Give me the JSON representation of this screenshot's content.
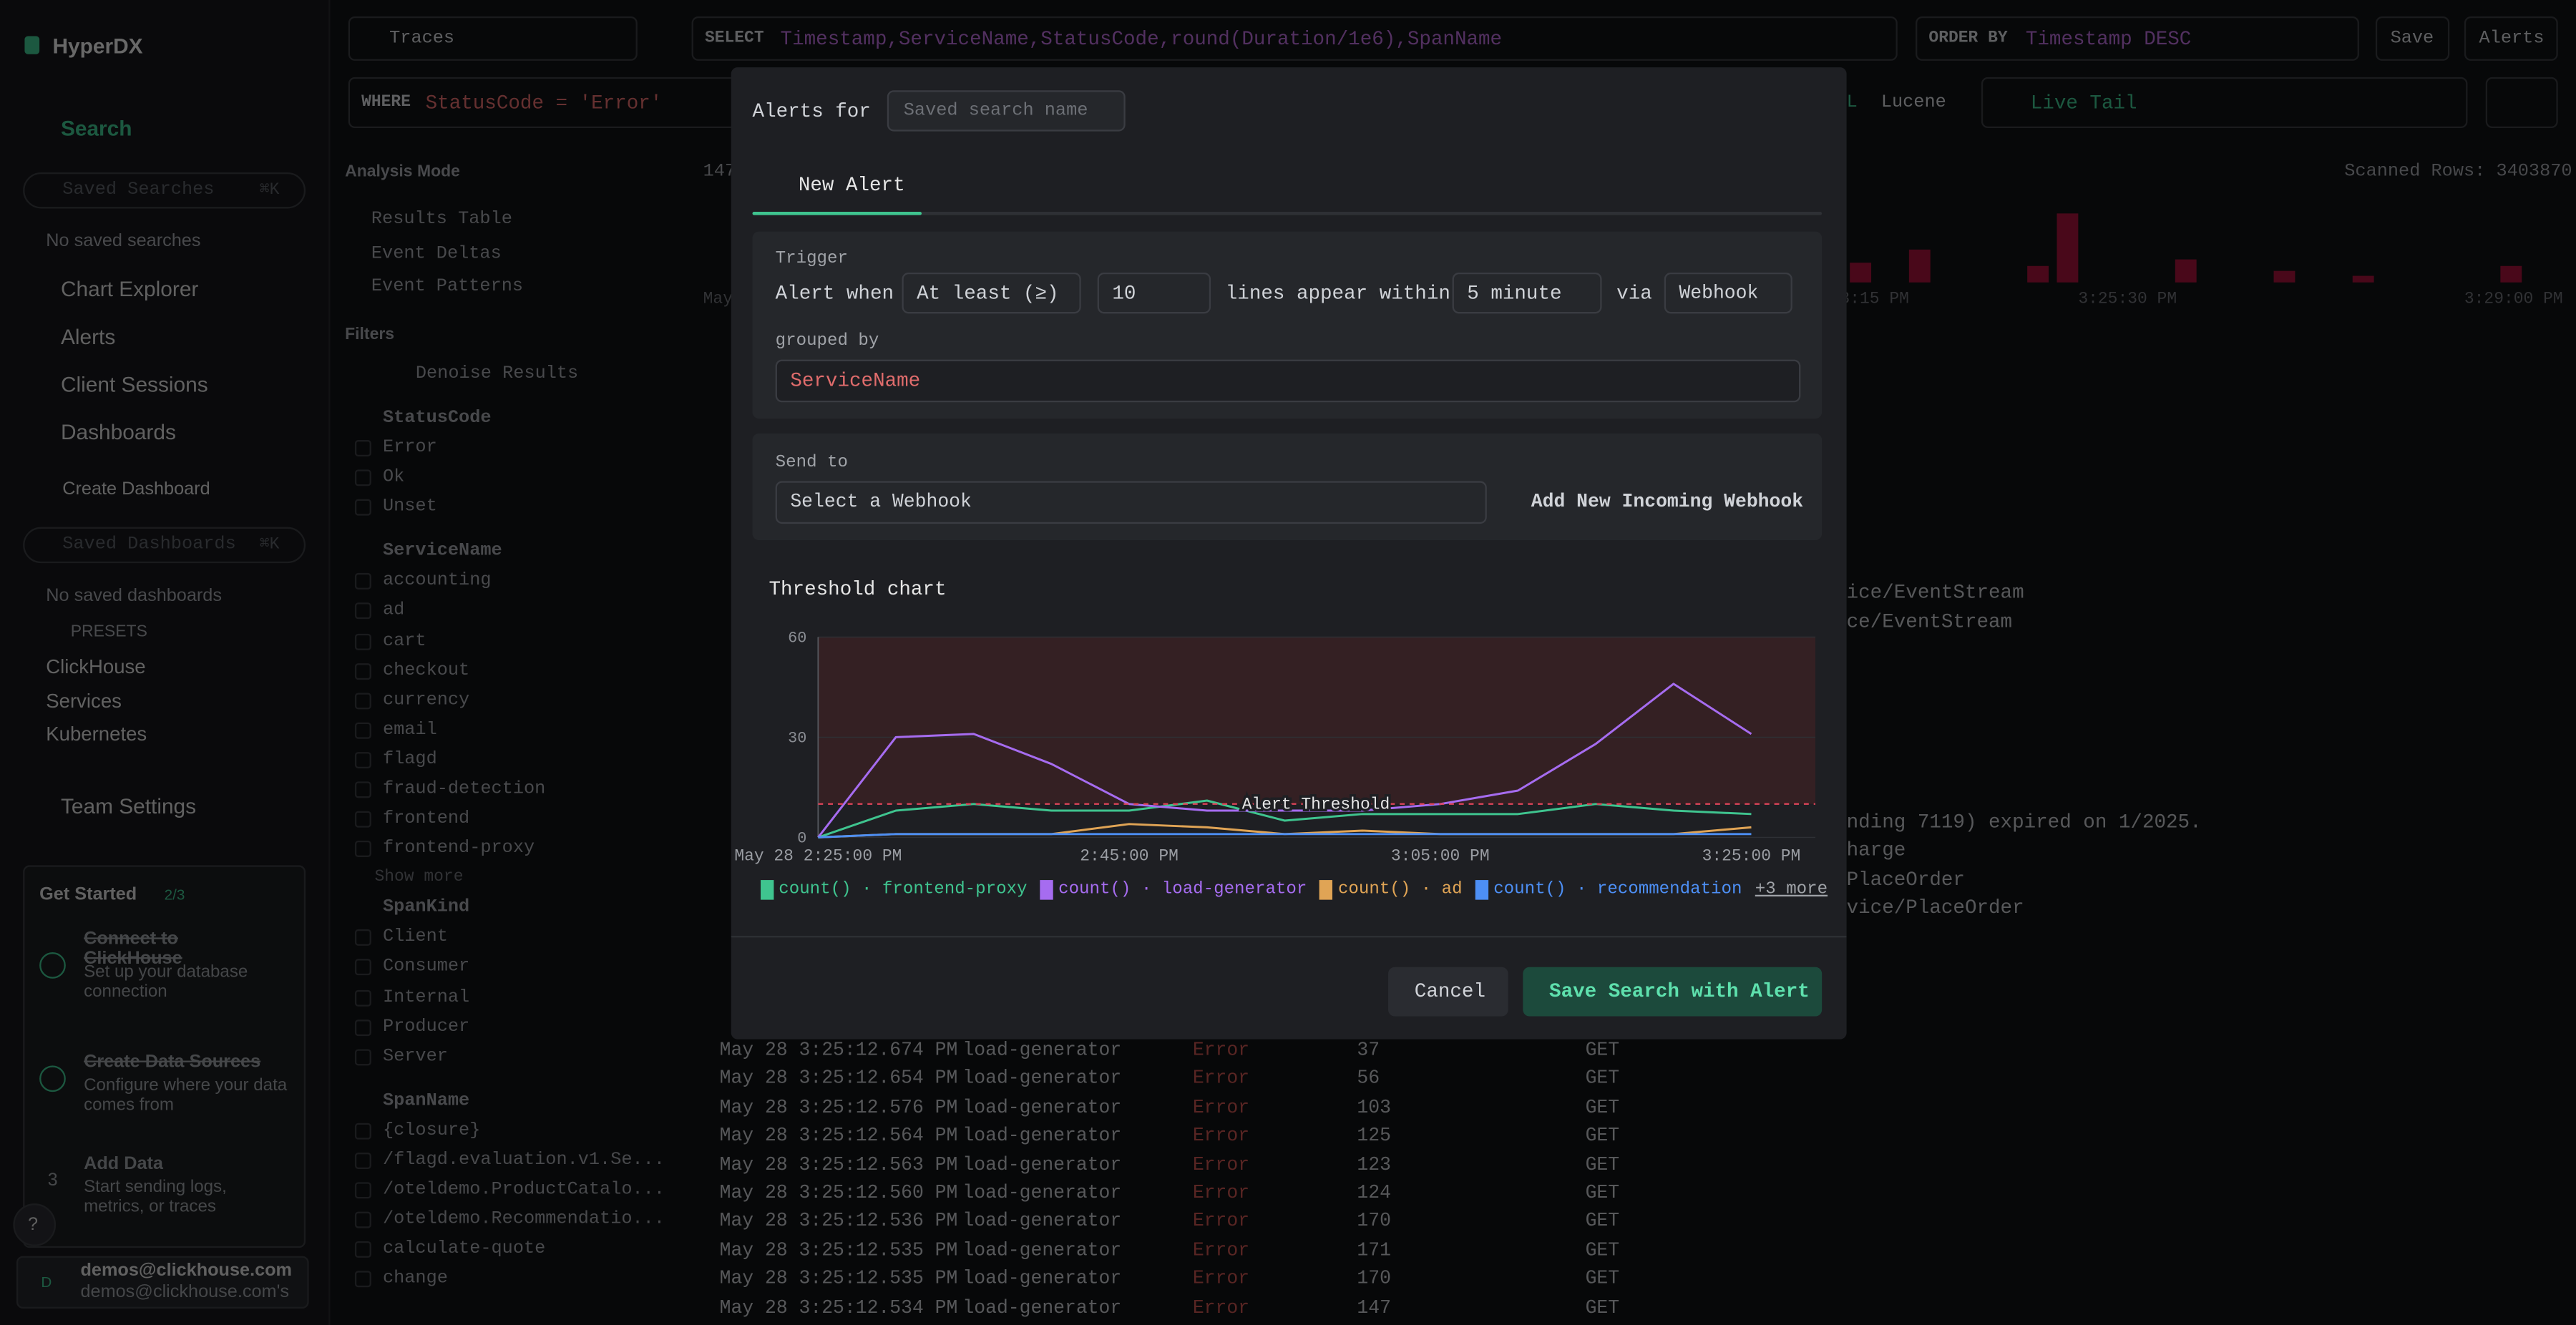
{
  "sidebar": {
    "brand": "HyperDX",
    "search": "Search",
    "saved_searches_placeholder": "Saved Searches",
    "shortcut": "⌘K",
    "no_saved_searches": "No saved searches",
    "nav": [
      "Chart Explorer",
      "Alerts",
      "Client Sessions"
    ],
    "dashboards": "Dashboards",
    "create_dashboard": "Create Dashboard",
    "saved_dashboards_placeholder": "Saved Dashboards",
    "shortcut_dashboards": "⌘K",
    "no_saved_dashboards": "No saved dashboards",
    "presets_label": "PRESETS",
    "presets": [
      "ClickHouse",
      "Services",
      "Kubernetes"
    ],
    "team_settings": "Team Settings",
    "get_started": {
      "title": "Get Started",
      "progress": "2/3",
      "steps": [
        {
          "title": "Connect to ClickHouse",
          "desc": "Set up your database connection"
        },
        {
          "title": "Create Data Sources",
          "desc": "Configure where your data comes from"
        },
        {
          "number": "3",
          "title": "Add Data",
          "desc": "Start sending logs, metrics, or traces"
        }
      ]
    },
    "help": "?",
    "user": {
      "avatar": "D",
      "name": "demos@clickhouse.com",
      "team": "demos@clickhouse.com's"
    }
  },
  "toolbar": {
    "source": "Traces",
    "select_keyword": "SELECT",
    "select": "Timestamp,ServiceName,StatusCode,round(Duration/1e6),SpanName",
    "order_keyword": "ORDER BY",
    "order": "Timestamp DESC",
    "save": "Save",
    "alerts": "Alerts",
    "where_keyword": "WHERE",
    "where": "StatusCode = 'Error'",
    "language_partial": "L",
    "language": "Lucene",
    "live_tail": "Live Tail"
  },
  "filters": {
    "analysis_mode": "Analysis Mode",
    "modes": [
      "Results Table",
      "Event Deltas",
      "Event Patterns"
    ],
    "title": "Filters",
    "denoise": "Denoise Results",
    "groups": [
      {
        "name": "StatusCode",
        "items": [
          "Error",
          "Ok",
          "Unset"
        ]
      },
      {
        "name": "ServiceName",
        "items": [
          "accounting",
          "ad",
          "cart",
          "checkout",
          "currency",
          "email",
          "flagd",
          "fraud-detection",
          "frontend",
          "frontend-proxy"
        ],
        "more": "Show more"
      },
      {
        "name": "SpanKind",
        "items": [
          "Client",
          "Consumer",
          "Internal",
          "Producer",
          "Server"
        ]
      },
      {
        "name": "SpanName",
        "items": [
          "{closure}",
          "/flagd.evaluation.v1.Se...",
          "/oteldemo.ProductCatalo...",
          "/oteldemo.Recommendatio...",
          "calculate-quote",
          "change"
        ]
      }
    ]
  },
  "results": {
    "count_partial": "147",
    "month_partial": "May",
    "scanned_rows": "Scanned Rows: 3403870",
    "histogram_ticks": [
      "3:15 PM",
      "3:25:30 PM",
      "3:29:00 PM"
    ],
    "fragments": [
      "ice/EventStream",
      "ce/EventStream",
      "nding 7119) expired on 1/2025.",
      "harge",
      "PlaceOrder",
      "vice/PlaceOrder"
    ],
    "rows": [
      [
        "May 28 3:25:12.674 PM",
        "load-generator",
        "Error",
        "37",
        "GET"
      ],
      [
        "May 28 3:25:12.654 PM",
        "load-generator",
        "Error",
        "56",
        "GET"
      ],
      [
        "May 28 3:25:12.576 PM",
        "load-generator",
        "Error",
        "103",
        "GET"
      ],
      [
        "May 28 3:25:12.564 PM",
        "load-generator",
        "Error",
        "125",
        "GET"
      ],
      [
        "May 28 3:25:12.563 PM",
        "load-generator",
        "Error",
        "123",
        "GET"
      ],
      [
        "May 28 3:25:12.560 PM",
        "load-generator",
        "Error",
        "124",
        "GET"
      ],
      [
        "May 28 3:25:12.536 PM",
        "load-generator",
        "Error",
        "170",
        "GET"
      ],
      [
        "May 28 3:25:12.535 PM",
        "load-generator",
        "Error",
        "171",
        "GET"
      ],
      [
        "May 28 3:25:12.535 PM",
        "load-generator",
        "Error",
        "170",
        "GET"
      ],
      [
        "May 28 3:25:12.534 PM",
        "load-generator",
        "Error",
        "147",
        "GET"
      ]
    ]
  },
  "modal": {
    "alerts_for": "Alerts for",
    "name_placeholder": "Saved search name",
    "tab": "New Alert",
    "trigger": "Trigger",
    "alert_when": "Alert when",
    "condition": "At least (≥)",
    "lines_within": "lines appear within",
    "window": "5 minute",
    "via": "via",
    "channel": "Webhook",
    "grouped_by": "grouped by",
    "group_field": "ServiceName",
    "send_to": "Send to",
    "webhook_placeholder": "Select a Webhook",
    "add_webhook": "Add New Incoming Webhook",
    "chart_title": "Threshold chart",
    "cancel": "Cancel",
    "save": "Save Search with Alert"
  },
  "chart_data": {
    "type": "line",
    "categories": [
      "May 28 2:25:00 PM",
      null,
      null,
      null,
      "2:45:00 PM",
      null,
      null,
      null,
      "3:05:00 PM",
      null,
      null,
      null,
      "3:25:00 PM"
    ],
    "ylim": [
      0,
      60
    ],
    "yticks": [
      0,
      30,
      60
    ],
    "threshold": 10,
    "threshold_label": "Alert Threshold",
    "series": [
      {
        "name": "count() · frontend-proxy",
        "color": "#3fc48f",
        "values": [
          0,
          8,
          10,
          8,
          8,
          11,
          5,
          7,
          7,
          7,
          10,
          8,
          7
        ]
      },
      {
        "name": "count() · load-generator",
        "color": "#a66cf0",
        "values": [
          0,
          30,
          31,
          22,
          10,
          8,
          8,
          8,
          10,
          14,
          28,
          46,
          31
        ]
      },
      {
        "name": "count() · ad",
        "color": "#e0a455",
        "values": [
          0,
          1,
          1,
          1,
          4,
          3,
          1,
          2,
          1,
          1,
          1,
          1,
          3
        ]
      },
      {
        "name": "count() · recommendation",
        "color": "#4d8ff5",
        "values": [
          0,
          1,
          1,
          1,
          1,
          1,
          1,
          1,
          1,
          1,
          1,
          1,
          1
        ]
      }
    ],
    "legend_more": "+3 more"
  }
}
